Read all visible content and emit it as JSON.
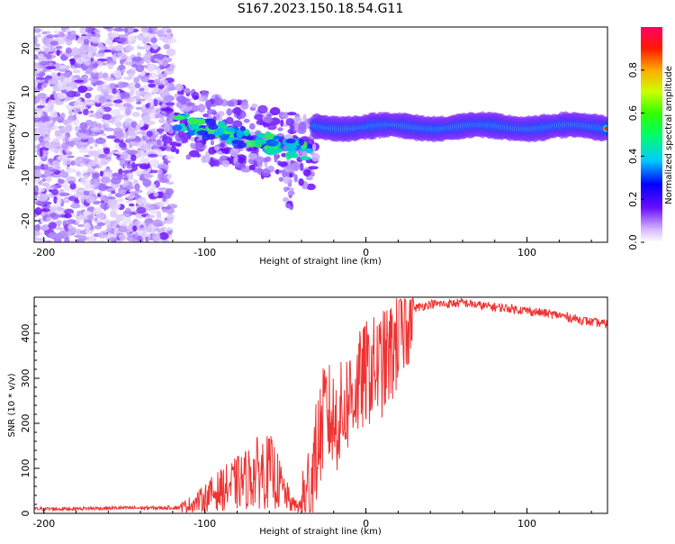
{
  "title": "S167.2023.150.18.54.G11",
  "spectrogram": {
    "xlabel": "Height of straight line (km)",
    "ylabel": "Frequency (Hz)",
    "xlim": [
      -206,
      150
    ],
    "ylim": [
      -25,
      25
    ],
    "xticks": [
      -200,
      -100,
      0,
      100
    ],
    "yticks": [
      -20,
      -10,
      0,
      10,
      20
    ],
    "colorbar": {
      "label": "Normalized spectral amplitude",
      "range": [
        0,
        1
      ],
      "ticks": [
        "0.0",
        "0.2",
        "0.4",
        "0.6",
        "0.8"
      ]
    }
  },
  "chart_data": {
    "type": "line",
    "xlabel": "Height of straight line (km)",
    "ylabel": "SNR (10 * v/v)",
    "xlim": [
      -206,
      150
    ],
    "ylim": [
      0,
      480
    ],
    "xticks": [
      -200,
      -100,
      0,
      100
    ],
    "yticks": [
      0,
      100,
      200,
      300,
      400
    ],
    "color": "#ee3333",
    "x": [
      -206,
      -190,
      -170,
      -150,
      -130,
      -115,
      -105,
      -95,
      -85,
      -75,
      -65,
      -58,
      -52,
      -46,
      -40,
      -34,
      -30,
      -25,
      -20,
      -15,
      -10,
      -5,
      0,
      5,
      10,
      15,
      20,
      25,
      30,
      40,
      50,
      60,
      70,
      80,
      90,
      100,
      110,
      120,
      130,
      140,
      150
    ],
    "values": [
      10,
      10,
      11,
      12,
      12,
      13,
      25,
      45,
      60,
      75,
      95,
      90,
      55,
      20,
      15,
      60,
      150,
      230,
      200,
      220,
      260,
      280,
      310,
      320,
      330,
      350,
      390,
      440,
      455,
      465,
      465,
      468,
      462,
      458,
      455,
      450,
      445,
      440,
      432,
      425,
      420
    ]
  }
}
